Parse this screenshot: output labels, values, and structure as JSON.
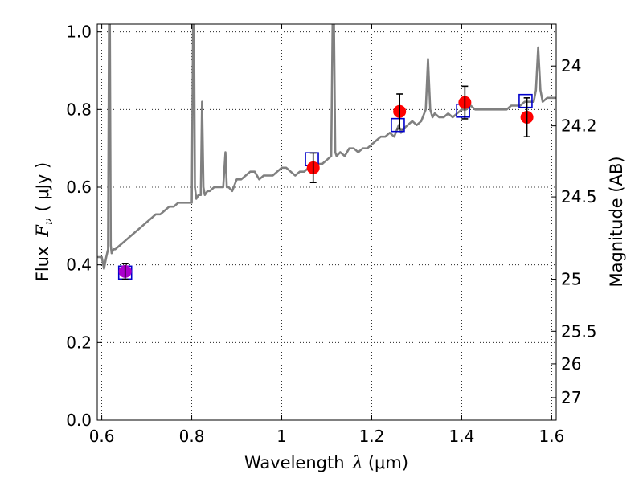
{
  "chart_data": {
    "type": "scatter",
    "title": "",
    "xlabel_prefix": "Wavelength",
    "xlabel_symbol": "λ",
    "xlabel_unit": "(μm)",
    "ylabel_prefix": "Flux",
    "ylabel_symbol": "F",
    "ylabel_subscript": "ν",
    "ylabel_unit": "( μJy )",
    "y2label": "Magnitude (AB)",
    "xlim": [
      0.59,
      1.61
    ],
    "ylim": [
      0.0,
      1.02
    ],
    "grid": true,
    "grid_style": "dotted",
    "x_ticks": [
      {
        "value": 0.6,
        "label": "0.6"
      },
      {
        "value": 0.8,
        "label": "0.8"
      },
      {
        "value": 1.0,
        "label": "1"
      },
      {
        "value": 1.2,
        "label": "1.2"
      },
      {
        "value": 1.4,
        "label": "1.4"
      },
      {
        "value": 1.6,
        "label": "1.6"
      }
    ],
    "y_ticks": [
      {
        "value": 0.0,
        "label": "0.0"
      },
      {
        "value": 0.2,
        "label": "0.2"
      },
      {
        "value": 0.4,
        "label": "0.4"
      },
      {
        "value": 0.6,
        "label": "0.6"
      },
      {
        "value": 0.8,
        "label": "0.8"
      },
      {
        "value": 1.0,
        "label": "1.0"
      }
    ],
    "y2_ticks": [
      {
        "flux": 0.912,
        "label": "24"
      },
      {
        "flux": 0.758,
        "label": "24.2"
      },
      {
        "flux": 0.575,
        "label": "24.5"
      },
      {
        "flux": 0.363,
        "label": "25"
      },
      {
        "flux": 0.229,
        "label": "25.5"
      },
      {
        "flux": 0.145,
        "label": "26"
      },
      {
        "flux": 0.058,
        "label": "27"
      }
    ],
    "colors": {
      "spectrum": "#808080",
      "observed": "#ff0000",
      "observed_highlight": "#aa00cc",
      "model": "#0000cc",
      "errorbar": "#000000"
    },
    "series": [
      {
        "kind": "spectrum",
        "x": [
          0.59,
          0.6,
          0.605,
          0.61,
          0.614,
          0.616,
          0.618,
          0.62,
          0.622,
          0.626,
          0.63,
          0.64,
          0.65,
          0.66,
          0.67,
          0.68,
          0.69,
          0.7,
          0.71,
          0.72,
          0.73,
          0.74,
          0.75,
          0.76,
          0.77,
          0.78,
          0.79,
          0.8,
          0.803,
          0.805,
          0.807,
          0.81,
          0.815,
          0.82,
          0.823,
          0.826,
          0.829,
          0.835,
          0.84,
          0.85,
          0.86,
          0.87,
          0.875,
          0.878,
          0.882,
          0.89,
          0.9,
          0.91,
          0.92,
          0.93,
          0.94,
          0.95,
          0.96,
          0.97,
          0.98,
          0.99,
          1.0,
          1.01,
          1.02,
          1.03,
          1.04,
          1.05,
          1.06,
          1.07,
          1.08,
          1.09,
          1.1,
          1.11,
          1.113,
          1.116,
          1.119,
          1.122,
          1.13,
          1.14,
          1.15,
          1.16,
          1.17,
          1.18,
          1.19,
          1.2,
          1.21,
          1.22,
          1.23,
          1.24,
          1.25,
          1.26,
          1.265,
          1.27,
          1.28,
          1.29,
          1.3,
          1.31,
          1.32,
          1.325,
          1.33,
          1.335,
          1.34,
          1.35,
          1.36,
          1.37,
          1.38,
          1.39,
          1.4,
          1.41,
          1.42,
          1.43,
          1.44,
          1.45,
          1.46,
          1.47,
          1.48,
          1.49,
          1.5,
          1.51,
          1.52,
          1.53,
          1.54,
          1.55,
          1.56,
          1.565,
          1.57,
          1.575,
          1.58,
          1.59,
          1.6,
          1.61
        ],
        "y": [
          0.42,
          0.42,
          0.39,
          0.42,
          0.44,
          1.02,
          1.02,
          0.45,
          0.43,
          0.44,
          0.44,
          0.45,
          0.46,
          0.47,
          0.48,
          0.49,
          0.5,
          0.51,
          0.52,
          0.53,
          0.53,
          0.54,
          0.55,
          0.55,
          0.56,
          0.56,
          0.56,
          0.56,
          1.02,
          1.02,
          0.6,
          0.57,
          0.58,
          0.58,
          0.82,
          0.6,
          0.58,
          0.59,
          0.59,
          0.6,
          0.6,
          0.6,
          0.69,
          0.6,
          0.6,
          0.59,
          0.62,
          0.62,
          0.63,
          0.64,
          0.64,
          0.62,
          0.63,
          0.63,
          0.63,
          0.64,
          0.65,
          0.65,
          0.64,
          0.63,
          0.64,
          0.64,
          0.65,
          0.66,
          0.66,
          0.66,
          0.67,
          0.68,
          1.02,
          1.02,
          0.69,
          0.68,
          0.69,
          0.68,
          0.7,
          0.7,
          0.69,
          0.7,
          0.7,
          0.71,
          0.72,
          0.73,
          0.73,
          0.74,
          0.73,
          0.76,
          0.74,
          0.75,
          0.76,
          0.77,
          0.76,
          0.77,
          0.8,
          0.93,
          0.8,
          0.78,
          0.79,
          0.78,
          0.78,
          0.79,
          0.78,
          0.79,
          0.8,
          0.8,
          0.81,
          0.8,
          0.8,
          0.8,
          0.8,
          0.8,
          0.8,
          0.8,
          0.8,
          0.81,
          0.81,
          0.81,
          0.82,
          0.82,
          0.82,
          0.85,
          0.96,
          0.85,
          0.82,
          0.83,
          0.83,
          0.83
        ]
      },
      {
        "kind": "observed",
        "name": "",
        "points": [
          {
            "x": 0.652,
            "y": 0.383,
            "err": 0.02,
            "highlight": true
          },
          {
            "x": 1.07,
            "y": 0.65,
            "err": 0.038,
            "highlight": false
          },
          {
            "x": 1.262,
            "y": 0.795,
            "err": 0.045,
            "highlight": false
          },
          {
            "x": 1.407,
            "y": 0.818,
            "err": 0.042,
            "highlight": false
          },
          {
            "x": 1.545,
            "y": 0.78,
            "err": 0.05,
            "highlight": false
          }
        ]
      },
      {
        "kind": "model",
        "name": "",
        "points": [
          {
            "x": 0.652,
            "y": 0.38
          },
          {
            "x": 1.067,
            "y": 0.672
          },
          {
            "x": 1.258,
            "y": 0.76
          },
          {
            "x": 1.403,
            "y": 0.797
          },
          {
            "x": 1.542,
            "y": 0.822
          }
        ]
      }
    ]
  }
}
